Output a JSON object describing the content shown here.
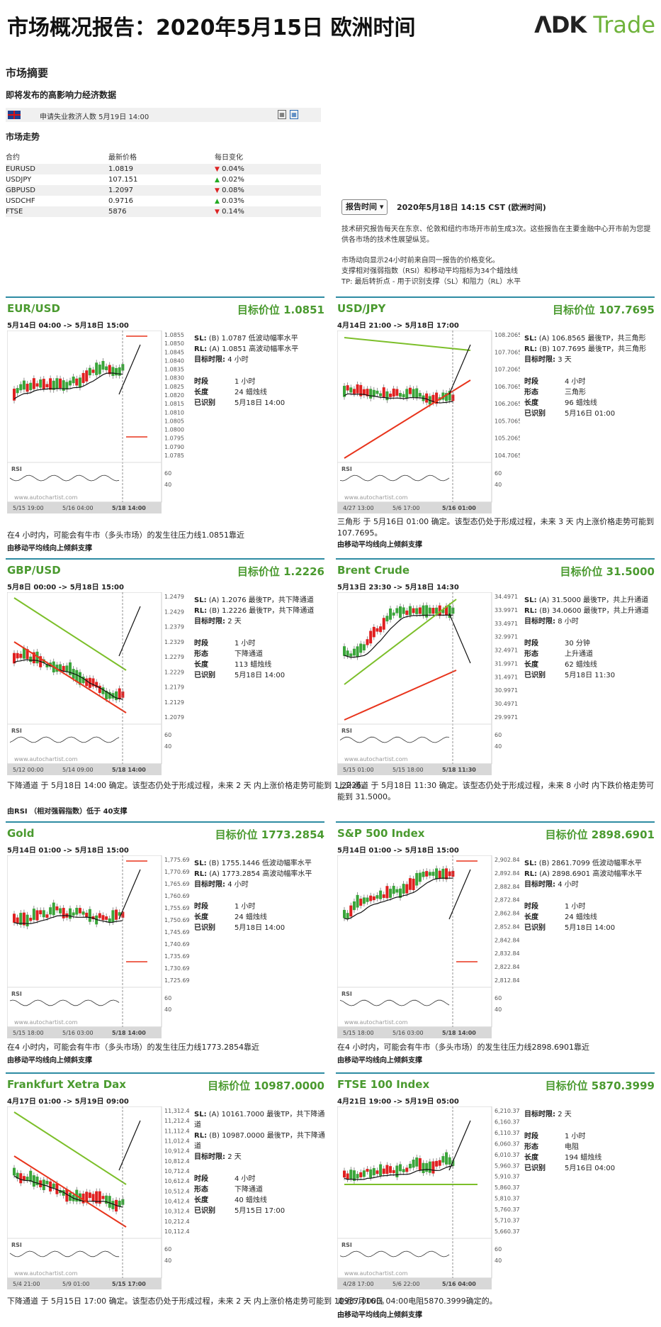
{
  "header": {
    "title": "市场概况报告：2020年5月15日 欧洲时间",
    "logo_ndk": "ɅDK",
    "logo_trade": " Trade"
  },
  "summary": {
    "title": "市场摘要",
    "events_title": "即将发布的高影响力经济数据",
    "event": {
      "text": "申请失业救济人数 5月19日 14:00"
    },
    "trend_title": "市场走势",
    "columns": [
      "合约",
      "最新价格",
      "每日变化"
    ],
    "rows": [
      {
        "symbol": "EURUSD",
        "price": "1.0819",
        "dir": "down",
        "change": "0.04%"
      },
      {
        "symbol": "USDJPY",
        "price": "107.151",
        "dir": "up",
        "change": "0.02%"
      },
      {
        "symbol": "GBPUSD",
        "price": "1.2097",
        "dir": "down",
        "change": "0.08%"
      },
      {
        "symbol": "USDCHF",
        "price": "0.9716",
        "dir": "up",
        "change": "0.03%"
      },
      {
        "symbol": "FTSE",
        "price": "5876",
        "dir": "down",
        "change": "0.14%"
      }
    ]
  },
  "report": {
    "button_label": "报告时间",
    "time": "2020年5月18日 14:15 CST (欧洲时间)",
    "p1": "技术研究报告每天在东京、伦敦和纽约市场开市前生成3次。这些报告在主要金融中心开市前为您提供各市场的技术性展望纵览。",
    "p2": "市场动向显示24小时前来自同一报告的价格变化。",
    "p3": "支撑相对强弱指数（RSI）和移动平均指标为34个蜡烛线",
    "p4": "TP: 最后转折点 - 用于识别支撑（SL）和阻力（RL）水平"
  },
  "panels": [
    {
      "name": "EUR/USD",
      "target": "目标价位 1.0851",
      "range": "5月14日 04:00 -> 5月18日 15:00",
      "sl": "(B) 1.0787 低波动幅率水平",
      "rl": "(A) 1.0851 高波动幅率水平",
      "period_label": "目标时限:",
      "period": "4 小时",
      "details": [
        [
          "时段",
          "1 小时"
        ],
        [
          "长度",
          "24 蜡烛线"
        ],
        [
          "已识别",
          "5月18日 14:00"
        ]
      ],
      "desc": "在4 小时内，可能会有牛市（多头市场）的发生往压力线1.0851靠近",
      "sub": "由移动平均线向上倾斜支撑",
      "ticks": [
        "1.0855",
        "1.0850",
        "1.0845",
        "1.0840",
        "1.0835",
        "1.0830",
        "1.0825",
        "1.0820",
        "1.0815",
        "1.0810",
        "1.0805",
        "1.0800",
        "1.0795",
        "1.0790",
        "1.0785"
      ],
      "xlabels": [
        "5/15 19:00",
        "5/16 04:00",
        "5/18 14:00"
      ],
      "pattern": "channel-up",
      "watermark": "www.autochartist.com",
      "rsi": "RSI",
      "rsi_ticks": [
        "60",
        "40"
      ]
    },
    {
      "name": "USD/JPY",
      "target": "目标价位 107.7695",
      "range": "4月14日 21:00 -> 5月18日 17:00",
      "sl": "(A) 106.8565 最後TP，共三角形",
      "rl": "(B) 107.7695 最後TP，共三角形",
      "period_label": "目标时限:",
      "period": "3 天",
      "details": [
        [
          "时段",
          "4 小时"
        ],
        [
          "形态",
          "三角形"
        ],
        [
          "长度",
          "96 蜡烛线"
        ],
        [
          "已识别",
          "5月16日 01:00"
        ]
      ],
      "desc": "三角形 于 5月16日 01:00 确定。该型态仍处于形成过程，未来 3 天 内上涨价格走势可能到 107.7695。",
      "sub": "由移动平均线向上倾斜支撑",
      "ticks": [
        "108.2065",
        "107.7065",
        "107.2065",
        "106.7065",
        "106.2065",
        "105.7065",
        "105.2065",
        "104.7065"
      ],
      "xlabels": [
        "4/27 13:00",
        "5/6 17:00",
        "5/16 01:00"
      ],
      "pattern": "triangle",
      "watermark": "www.autochartist.com",
      "rsi": "RSI",
      "rsi_ticks": [
        "60",
        "40"
      ]
    },
    {
      "name": "GBP/USD",
      "target": "目标价位 1.2226",
      "range": "5月8日 00:00 -> 5月18日 15:00",
      "sl": "(A) 1.2076 最後TP，共下降通道",
      "rl": "(B) 1.2226 最後TP，共下降通道",
      "period_label": "目标时限:",
      "period": "2 天",
      "details": [
        [
          "时段",
          "1 小时"
        ],
        [
          "形态",
          "下降通道"
        ],
        [
          "长度",
          "113 蜡烛线"
        ],
        [
          "已识别",
          "5月18日 14:00"
        ]
      ],
      "desc": "下降通道 于 5月18日 14:00 确定。该型态仍处于形成过程，未来 2 天 内上涨价格走势可能到 1.2226。",
      "sub": "由RSI （相对强弱指数）低于 40支撑",
      "ticks": [
        "1.2479",
        "1.2429",
        "1.2379",
        "1.2329",
        "1.2279",
        "1.2229",
        "1.2179",
        "1.2129",
        "1.2079"
      ],
      "xlabels": [
        "5/12 00:00",
        "5/14 09:00",
        "5/18 14:00"
      ],
      "pattern": "channel-down",
      "watermark": "www.autochartist.com",
      "rsi": "RSI",
      "rsi_ticks": [
        "60",
        "40"
      ]
    },
    {
      "name": "Brent Crude",
      "target": "目标价位 31.5000",
      "range": "5月13日 23:30 -> 5月18日 14:30",
      "sl": "(A) 31.5000 最後TP，共上升通道",
      "rl": "(B) 34.0600 最後TP，共上升通道",
      "period_label": "目标时限:",
      "period": "8 小时",
      "details": [
        [
          "时段",
          "30 分钟"
        ],
        [
          "形态",
          "上升通道"
        ],
        [
          "长度",
          "62 蜡烛线"
        ],
        [
          "已识别",
          "5月18日 11:30"
        ]
      ],
      "desc": "上升通道 于 5月18日 11:30 确定。该型态仍处于形成过程，未来 8 小时 内下跌价格走势可能到 31.5000。",
      "sub": "",
      "ticks": [
        "34.4971",
        "33.9971",
        "33.4971",
        "32.9971",
        "32.4971",
        "31.9971",
        "31.4971",
        "30.9971",
        "30.4971",
        "29.9971"
      ],
      "xlabels": [
        "5/15 01:00",
        "5/15 18:00",
        "5/18 11:30"
      ],
      "pattern": "channel-up-break",
      "watermark": "www.autochartist.com",
      "rsi": "RSI",
      "rsi_ticks": [
        "60",
        "40"
      ]
    },
    {
      "name": "Gold",
      "target": "目标价位 1773.2854",
      "range": "5月14日 01:00 -> 5月18日 15:00",
      "sl": "(B) 1755.1446 低波动幅率水平",
      "rl": "(A) 1773.2854 高波动幅率水平",
      "period_label": "目标时限:",
      "period": "4 小时",
      "details": [
        [
          "时段",
          "1 小时"
        ],
        [
          "长度",
          "24 蜡烛线"
        ],
        [
          "已识别",
          "5月18日 14:00"
        ]
      ],
      "desc": "在4 小时内，可能会有牛市（多头市场）的发生往压力线1773.2854靠近",
      "sub": "由移动平均线向上倾斜支撑",
      "ticks": [
        "1,775.6936",
        "1,770.6936",
        "1,765.6936",
        "1,760.6936",
        "1,755.6936",
        "1,750.6936",
        "1,745.6936",
        "1,740.6936",
        "1,735.6936",
        "1,730.6936",
        "1,725.6936"
      ],
      "xlabels": [
        "5/15 18:00",
        "5/16 03:00",
        "5/18 14:00"
      ],
      "pattern": "levels-up",
      "watermark": "www.autochartist.com",
      "rsi": "RSI",
      "rsi_ticks": [
        "60",
        "40"
      ]
    },
    {
      "name": "S&P 500 Index",
      "target": "目标价位 2898.6901",
      "range": "5月14日 01:00 -> 5月18日 15:00",
      "sl": "(B) 2861.7099 低波动幅率水平",
      "rl": "(A) 2898.6901 高波动幅率水平",
      "period_label": "目标时限:",
      "period": "4 小时",
      "details": [
        [
          "时段",
          "1 小时"
        ],
        [
          "长度",
          "24 蜡烛线"
        ],
        [
          "已识别",
          "5月18日 14:00"
        ]
      ],
      "desc": "在4 小时内，可能会有牛市（多头市场）的发生往压力线2898.6901靠近",
      "sub": "由移动平均线向上倾斜支撑",
      "ticks": [
        "2,902.8446",
        "2,892.8446",
        "2,882.8446",
        "2,872.8446",
        "2,862.8446",
        "2,852.8446",
        "2,842.8446",
        "2,832.8446",
        "2,822.8446",
        "2,812.8446"
      ],
      "xlabels": [
        "5/15 18:00",
        "5/16 03:00",
        "5/18 14:00"
      ],
      "pattern": "levels-up",
      "watermark": "www.autochartist.com",
      "rsi": "RSI",
      "rsi_ticks": [
        "60",
        "40"
      ]
    },
    {
      "name": "Frankfurt Xetra Dax",
      "target": "目标价位 10987.0000",
      "range": "4月17日 01:00 -> 5月19日 09:00",
      "sl": "(A) 10161.7000 最後TP，共下降通道",
      "rl": "(B) 10987.0000 最後TP，共下降通道",
      "period_label": "目标时限:",
      "period": "2 天",
      "details": [
        [
          "时段",
          "4 小时"
        ],
        [
          "形态",
          "下降通道"
        ],
        [
          "长度",
          "40 蜡烛线"
        ],
        [
          "已识别",
          "5月15日 17:00"
        ]
      ],
      "desc": "下降通道 于 5月15日 17:00 确定。该型态仍处于形成过程，未来 2 天 内上涨价格走势可能到 10987.0000。",
      "sub": "",
      "ticks": [
        "11,312.4928",
        "11,212.4928",
        "11,112.4928",
        "11,012.4928",
        "10,912.4928",
        "10,812.4928",
        "10,712.4928",
        "10,612.4928",
        "10,512.4928",
        "10,412.4928",
        "10,312.4928",
        "10,212.4928",
        "10,112.4928"
      ],
      "xlabels": [
        "5/4 21:00",
        "5/9 01:00",
        "5/15 17:00"
      ],
      "pattern": "channel-down",
      "watermark": "www.autochartist.com",
      "rsi": "RSI",
      "rsi_ticks": [
        "60",
        "40"
      ]
    },
    {
      "name": "FTSE 100 Index",
      "target": "目标价位 5870.3999",
      "range": "4月21日 19:00 -> 5月19日 05:00",
      "sl": "",
      "rl": "",
      "period_label": "目标时限:",
      "period": "2 天",
      "details": [
        [
          "时段",
          "1 小时"
        ],
        [
          "形态",
          "电阻"
        ],
        [
          "长度",
          "194 蜡烛线"
        ],
        [
          "已识别",
          "5月16日 04:00"
        ]
      ],
      "desc": "走近5月16日 04:00电阻5870.3999确定的。",
      "sub": "由移动平均线向上倾斜支撑",
      "ticks": [
        "6,210.3700",
        "6,160.3700",
        "6,110.3700",
        "6,060.3700",
        "6,010.3700",
        "5,960.3700",
        "5,910.3700",
        "5,860.3700",
        "5,810.3700",
        "5,760.3700",
        "5,710.3700",
        "5,660.3700"
      ],
      "xlabels": [
        "4/28 17:00",
        "5/6 22:00",
        "5/16 04:00"
      ],
      "pattern": "resistance",
      "watermark": "www.autochartist.com",
      "rsi": "RSI",
      "rsi_ticks": [
        "60",
        "40"
      ]
    }
  ]
}
